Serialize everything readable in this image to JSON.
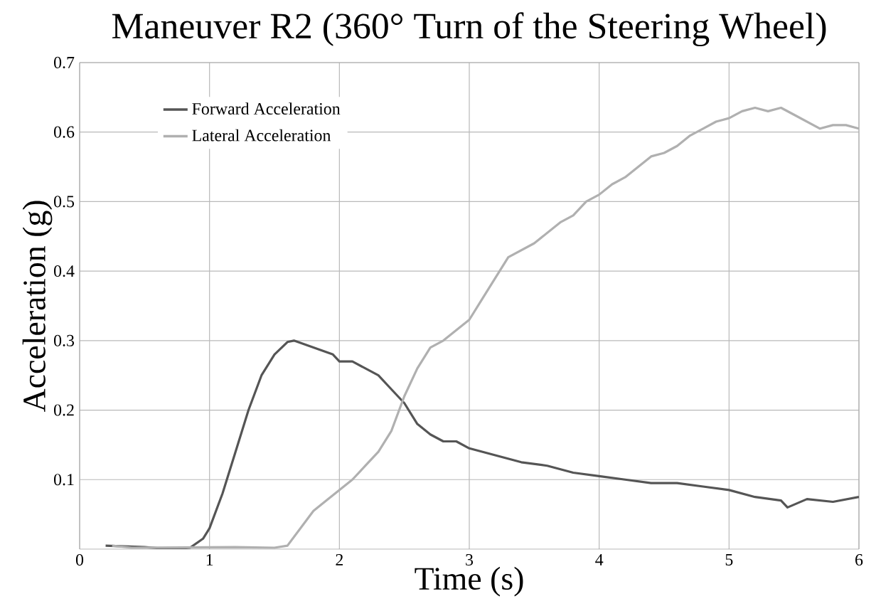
{
  "chart_data": {
    "type": "line",
    "title": "Maneuver R2 (360° Turn of the Steering Wheel)",
    "xlabel": "Time (s)",
    "ylabel": "Acceleration (g)",
    "xlim": [
      0,
      6
    ],
    "ylim": [
      0,
      0.7
    ],
    "xticks": [
      0,
      1,
      2,
      3,
      4,
      5,
      6
    ],
    "yticks": [
      0.1,
      0.2,
      0.3,
      0.4,
      0.5,
      0.6,
      0.7
    ],
    "grid": true,
    "legend": "top left",
    "marker": "none",
    "line_style": "solid",
    "series": [
      {
        "name": "Forward Acceleration",
        "color": "#555555",
        "x": [
          0.2,
          0.5,
          0.7,
          0.85,
          0.95,
          1.0,
          1.1,
          1.2,
          1.3,
          1.4,
          1.5,
          1.6,
          1.65,
          1.8,
          1.95,
          2.0,
          2.1,
          2.2,
          2.3,
          2.4,
          2.5,
          2.6,
          2.7,
          2.8,
          2.9,
          3.0,
          3.2,
          3.4,
          3.6,
          3.8,
          4.0,
          4.2,
          4.4,
          4.6,
          4.8,
          5.0,
          5.2,
          5.4,
          5.45,
          5.6,
          5.8,
          6.0
        ],
        "values": [
          0.005,
          0.003,
          0.0,
          0.002,
          0.015,
          0.03,
          0.08,
          0.14,
          0.2,
          0.25,
          0.28,
          0.298,
          0.3,
          0.29,
          0.28,
          0.27,
          0.27,
          0.26,
          0.25,
          0.23,
          0.21,
          0.18,
          0.165,
          0.155,
          0.155,
          0.145,
          0.135,
          0.125,
          0.12,
          0.11,
          0.105,
          0.1,
          0.095,
          0.095,
          0.09,
          0.085,
          0.075,
          0.07,
          0.06,
          0.072,
          0.068,
          0.075
        ]
      },
      {
        "name": "Lateral Acceleration",
        "color": "#b0b0b0",
        "x": [
          0.25,
          0.4,
          1.2,
          1.5,
          1.6,
          1.7,
          1.8,
          1.9,
          2.0,
          2.1,
          2.2,
          2.3,
          2.4,
          2.5,
          2.6,
          2.7,
          2.8,
          2.9,
          3.0,
          3.1,
          3.2,
          3.3,
          3.4,
          3.5,
          3.6,
          3.7,
          3.8,
          3.9,
          4.0,
          4.1,
          4.2,
          4.3,
          4.4,
          4.5,
          4.6,
          4.7,
          4.8,
          4.9,
          5.0,
          5.1,
          5.2,
          5.3,
          5.4,
          5.5,
          5.6,
          5.7,
          5.8,
          5.9,
          6.0
        ],
        "values": [
          0.005,
          0.002,
          0.003,
          0.002,
          0.005,
          0.03,
          0.055,
          0.07,
          0.085,
          0.1,
          0.12,
          0.14,
          0.17,
          0.22,
          0.26,
          0.29,
          0.3,
          0.315,
          0.33,
          0.36,
          0.39,
          0.42,
          0.43,
          0.44,
          0.455,
          0.47,
          0.48,
          0.5,
          0.51,
          0.525,
          0.535,
          0.55,
          0.565,
          0.57,
          0.58,
          0.595,
          0.605,
          0.615,
          0.62,
          0.63,
          0.635,
          0.63,
          0.635,
          0.625,
          0.615,
          0.605,
          0.61,
          0.61,
          0.605
        ]
      }
    ]
  }
}
